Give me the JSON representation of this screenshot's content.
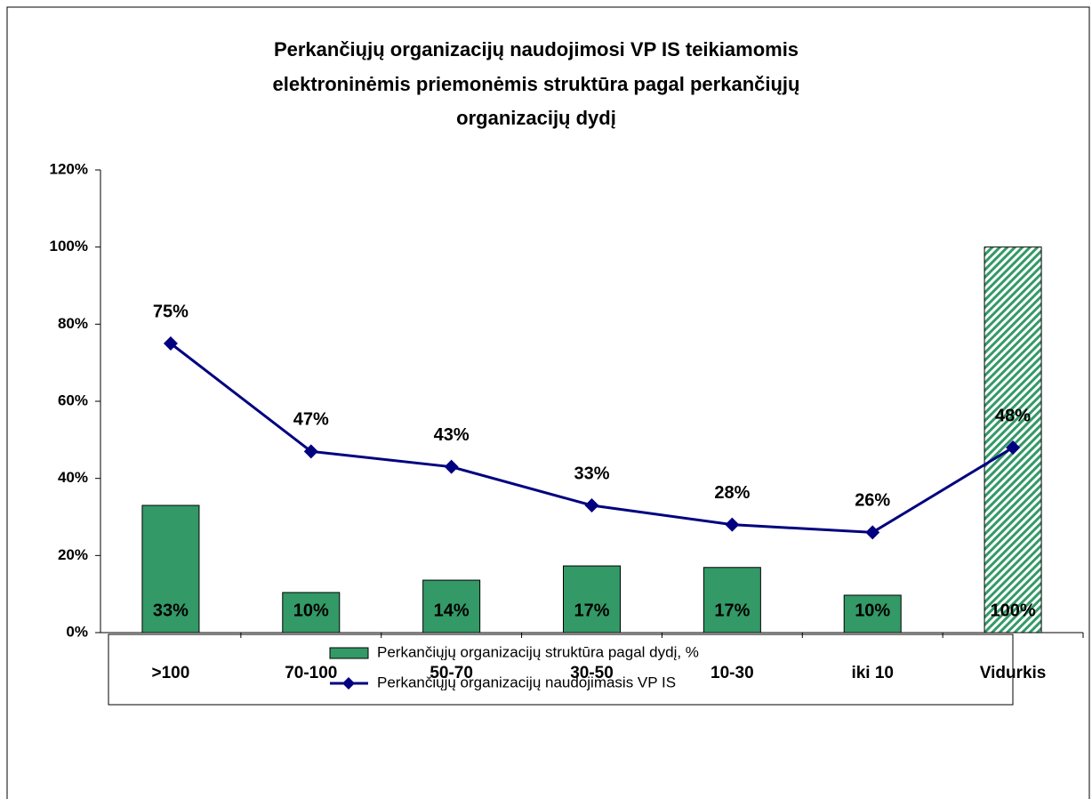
{
  "chart_data": {
    "type": "bar_line",
    "title": [
      "Perkančiųjų organizacijų naudojimosi VP IS teikiamomis",
      "elektroninėmis priemonėmis struktūra pagal perkančiųjų",
      "organizacijų dydį"
    ],
    "categories": [
      ">100",
      "70-100",
      "50-70",
      "30-50",
      "10-30",
      "iki 10",
      "Vidurkis"
    ],
    "series": [
      {
        "name": "Perkančiųjų organizacijų struktūra pagal dydį, %",
        "type": "bar",
        "color": "#339966",
        "values": [
          33,
          10.4,
          13.6,
          17.3,
          16.9,
          9.7,
          100
        ],
        "value_labels": [
          "33%",
          "10%",
          "14%",
          "17%",
          "17%",
          "10%",
          "100%"
        ],
        "patterns": [
          "solid",
          "solid",
          "solid",
          "solid",
          "solid",
          "solid",
          "hatched"
        ]
      },
      {
        "name": "Perkančiųjų organizacijų naudojimasis VP IS",
        "type": "line",
        "color": "#000080",
        "values": [
          75,
          47,
          43,
          33,
          28,
          26,
          48
        ],
        "value_labels": [
          "75%",
          "47%",
          "43%",
          "33%",
          "28%",
          "26%",
          "48%"
        ]
      }
    ],
    "ylim": [
      0,
      120
    ],
    "yticks": [
      {
        "value": 0,
        "label": "0%"
      },
      {
        "value": 20,
        "label": "20%"
      },
      {
        "value": 40,
        "label": "40%"
      },
      {
        "value": 60,
        "label": "60%"
      },
      {
        "value": 80,
        "label": "80%"
      },
      {
        "value": 100,
        "label": "100%"
      },
      {
        "value": 120,
        "label": "120%"
      }
    ],
    "legend": "bottom"
  }
}
